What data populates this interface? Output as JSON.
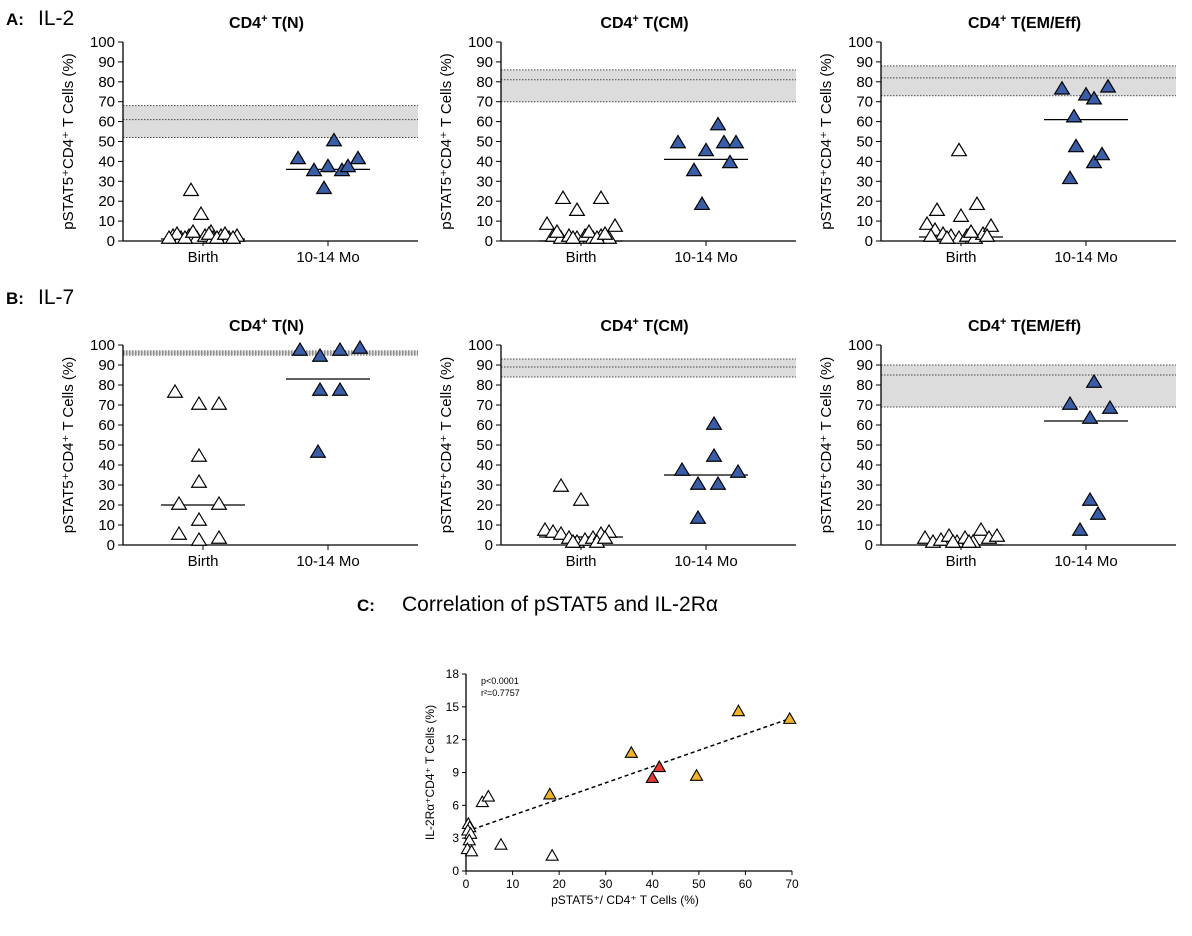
{
  "panels": {
    "A": {
      "letter": "A:",
      "label": "IL-2"
    },
    "B": {
      "letter": "B:",
      "label": "IL-7"
    },
    "C": {
      "letter": "C:",
      "label": "Correlation of pSTAT5 and IL-2Rα"
    }
  },
  "colors": {
    "filled": "#3a5da8",
    "open": "#ffffff",
    "band": "#dcdcdc",
    "orange": "#f0b429",
    "red": "#e63a2e",
    "stroke": "#000000"
  },
  "chart_data": [
    {
      "id": "A1",
      "type": "scatter",
      "title_prefix": "CD4",
      "title_sup": "+",
      "title_suffix": " T(N)",
      "ylabel": "pSTAT5⁺CD4⁺ T Cells (%)",
      "ylim": [
        0,
        100
      ],
      "yticks": [
        0,
        10,
        20,
        30,
        40,
        50,
        60,
        70,
        80,
        90,
        100
      ],
      "categories": [
        "Birth",
        "10-14 Mo"
      ],
      "reference_band": {
        "low": 52,
        "mid": 61,
        "high": 68
      },
      "groups": [
        {
          "name": "Birth",
          "fill": "open",
          "median": 1,
          "points": [
            {
              "x": -12,
              "y": 24
            },
            {
              "x": -2,
              "y": 12
            },
            {
              "x": 8,
              "y": 3
            },
            {
              "x": -30,
              "y": 1
            },
            {
              "x": -22,
              "y": 0
            },
            {
              "x": -14,
              "y": 1
            },
            {
              "x": -6,
              "y": 0
            },
            {
              "x": 2,
              "y": 1
            },
            {
              "x": 10,
              "y": 0
            },
            {
              "x": 18,
              "y": 1
            },
            {
              "x": 26,
              "y": 0
            },
            {
              "x": 34,
              "y": 1
            },
            {
              "x": -26,
              "y": 2
            },
            {
              "x": -18,
              "y": 0
            },
            {
              "x": -10,
              "y": 3
            },
            {
              "x": 6,
              "y": 2
            },
            {
              "x": 14,
              "y": 0
            },
            {
              "x": 22,
              "y": 2
            },
            {
              "x": 30,
              "y": 0
            },
            {
              "x": -34,
              "y": 0
            }
          ]
        },
        {
          "name": "10-14 Mo",
          "fill": "filled",
          "median": 36,
          "points": [
            {
              "x": -30,
              "y": 40
            },
            {
              "x": -14,
              "y": 34
            },
            {
              "x": 0,
              "y": 36
            },
            {
              "x": 14,
              "y": 34
            },
            {
              "x": 30,
              "y": 40
            },
            {
              "x": 6,
              "y": 49
            },
            {
              "x": -4,
              "y": 25
            },
            {
              "x": 20,
              "y": 36
            }
          ]
        }
      ]
    },
    {
      "id": "A2",
      "type": "scatter",
      "title_prefix": "CD4",
      "title_sup": "+",
      "title_suffix": " T(CM)",
      "ylabel": "pSTAT5⁺CD4⁺ T Cells (%)",
      "ylim": [
        0,
        100
      ],
      "yticks": [
        0,
        10,
        20,
        30,
        40,
        50,
        60,
        70,
        80,
        90,
        100
      ],
      "categories": [
        "Birth",
        "10-14 Mo"
      ],
      "reference_band": {
        "low": 70,
        "mid": 81,
        "high": 86
      },
      "groups": [
        {
          "name": "Birth",
          "fill": "open",
          "median": 0,
          "points": [
            {
              "x": -34,
              "y": 7
            },
            {
              "x": -18,
              "y": 20
            },
            {
              "x": -4,
              "y": 14
            },
            {
              "x": 20,
              "y": 20
            },
            {
              "x": 34,
              "y": 6
            },
            {
              "x": -28,
              "y": 1
            },
            {
              "x": -20,
              "y": 0
            },
            {
              "x": -12,
              "y": 1
            },
            {
              "x": -4,
              "y": 0
            },
            {
              "x": 4,
              "y": 1
            },
            {
              "x": 12,
              "y": 0
            },
            {
              "x": 20,
              "y": 1
            },
            {
              "x": 28,
              "y": 0
            },
            {
              "x": -24,
              "y": 3
            },
            {
              "x": 8,
              "y": 3
            },
            {
              "x": -8,
              "y": 0
            },
            {
              "x": 16,
              "y": 0
            },
            {
              "x": 24,
              "y": 2
            }
          ]
        },
        {
          "name": "10-14 Mo",
          "fill": "filled",
          "median": 41,
          "points": [
            {
              "x": -28,
              "y": 48
            },
            {
              "x": -12,
              "y": 34
            },
            {
              "x": 0,
              "y": 44
            },
            {
              "x": 12,
              "y": 57
            },
            {
              "x": 18,
              "y": 48
            },
            {
              "x": 30,
              "y": 48
            },
            {
              "x": -4,
              "y": 17
            },
            {
              "x": 24,
              "y": 38
            }
          ]
        }
      ]
    },
    {
      "id": "A3",
      "type": "scatter",
      "title_prefix": "CD4",
      "title_sup": "+",
      "title_suffix": " T(EM/Eff)",
      "ylabel": "pSTAT5⁺CD4⁺ T Cells (%)",
      "ylim": [
        0,
        100
      ],
      "yticks": [
        0,
        10,
        20,
        30,
        40,
        50,
        60,
        70,
        80,
        90,
        100
      ],
      "categories": [
        "Birth",
        "10-14 Mo"
      ],
      "reference_band": {
        "low": 73,
        "mid": 82,
        "high": 88
      },
      "groups": [
        {
          "name": "Birth",
          "fill": "open",
          "median": 2,
          "points": [
            {
              "x": -2,
              "y": 44
            },
            {
              "x": -24,
              "y": 14
            },
            {
              "x": 0,
              "y": 11
            },
            {
              "x": 16,
              "y": 17
            },
            {
              "x": -34,
              "y": 7
            },
            {
              "x": -26,
              "y": 4
            },
            {
              "x": -18,
              "y": 2
            },
            {
              "x": -10,
              "y": 1
            },
            {
              "x": -2,
              "y": 0
            },
            {
              "x": 6,
              "y": 1
            },
            {
              "x": 14,
              "y": 0
            },
            {
              "x": 22,
              "y": 2
            },
            {
              "x": 30,
              "y": 6
            },
            {
              "x": -30,
              "y": 1
            },
            {
              "x": -14,
              "y": 0
            },
            {
              "x": 10,
              "y": 3
            },
            {
              "x": 26,
              "y": 1
            }
          ]
        },
        {
          "name": "10-14 Mo",
          "fill": "filled",
          "median": 61,
          "points": [
            {
              "x": -24,
              "y": 75
            },
            {
              "x": -12,
              "y": 61
            },
            {
              "x": 0,
              "y": 72
            },
            {
              "x": 8,
              "y": 70
            },
            {
              "x": 22,
              "y": 76
            },
            {
              "x": -16,
              "y": 30
            },
            {
              "x": -10,
              "y": 46
            },
            {
              "x": 8,
              "y": 38
            },
            {
              "x": 16,
              "y": 42
            }
          ]
        }
      ]
    },
    {
      "id": "B1",
      "type": "scatter",
      "title_prefix": "CD4",
      "title_sup": "+",
      "title_suffix": " T(N)",
      "ylabel": "pSTAT5⁺CD4⁺ T Cells (%)",
      "ylim": [
        0,
        100
      ],
      "yticks": [
        0,
        10,
        20,
        30,
        40,
        50,
        60,
        70,
        80,
        90,
        100
      ],
      "categories": [
        "Birth",
        "10-14 Mo"
      ],
      "reference_band": {
        "low": 95,
        "mid": 96,
        "high": 97
      },
      "groups": [
        {
          "name": "Birth",
          "fill": "open",
          "median": 20,
          "points": [
            {
              "x": -28,
              "y": 75
            },
            {
              "x": -4,
              "y": 69
            },
            {
              "x": 16,
              "y": 69
            },
            {
              "x": -4,
              "y": 43
            },
            {
              "x": -4,
              "y": 30
            },
            {
              "x": -24,
              "y": 19
            },
            {
              "x": 16,
              "y": 19
            },
            {
              "x": -4,
              "y": 11
            },
            {
              "x": -24,
              "y": 4
            },
            {
              "x": -4,
              "y": 1
            },
            {
              "x": 16,
              "y": 2
            }
          ]
        },
        {
          "name": "10-14 Mo",
          "fill": "filled",
          "median": 83,
          "points": [
            {
              "x": -28,
              "y": 96
            },
            {
              "x": -8,
              "y": 93
            },
            {
              "x": 12,
              "y": 96
            },
            {
              "x": 32,
              "y": 97
            },
            {
              "x": -8,
              "y": 76
            },
            {
              "x": 12,
              "y": 76
            },
            {
              "x": -10,
              "y": 45
            }
          ]
        }
      ]
    },
    {
      "id": "B2",
      "type": "scatter",
      "title_prefix": "CD4",
      "title_sup": "+",
      "title_suffix": " T(CM)",
      "ylabel": "pSTAT5⁺CD4⁺ T Cells (%)",
      "ylim": [
        0,
        100
      ],
      "yticks": [
        0,
        10,
        20,
        30,
        40,
        50,
        60,
        70,
        80,
        90,
        100
      ],
      "categories": [
        "Birth",
        "10-14 Mo"
      ],
      "reference_band": {
        "low": 84,
        "mid": 89,
        "high": 93
      },
      "groups": [
        {
          "name": "Birth",
          "fill": "open",
          "median": 4,
          "points": [
            {
              "x": -20,
              "y": 28
            },
            {
              "x": 0,
              "y": 21
            },
            {
              "x": -36,
              "y": 6
            },
            {
              "x": -28,
              "y": 5
            },
            {
              "x": -20,
              "y": 4
            },
            {
              "x": -12,
              "y": 2
            },
            {
              "x": -4,
              "y": 0
            },
            {
              "x": 4,
              "y": 1
            },
            {
              "x": 12,
              "y": 2
            },
            {
              "x": 20,
              "y": 4
            },
            {
              "x": 28,
              "y": 5
            },
            {
              "x": -8,
              "y": 0
            },
            {
              "x": 16,
              "y": 0
            },
            {
              "x": 24,
              "y": 2
            }
          ]
        },
        {
          "name": "10-14 Mo",
          "fill": "filled",
          "median": 35,
          "points": [
            {
              "x": 8,
              "y": 59
            },
            {
              "x": 8,
              "y": 43
            },
            {
              "x": -24,
              "y": 36
            },
            {
              "x": 32,
              "y": 35
            },
            {
              "x": -8,
              "y": 29
            },
            {
              "x": 12,
              "y": 29
            },
            {
              "x": -8,
              "y": 12
            }
          ]
        }
      ]
    },
    {
      "id": "B3",
      "type": "scatter",
      "title_prefix": "CD4",
      "title_sup": "+",
      "title_suffix": " T(EM/Eff)",
      "ylabel": "pSTAT5⁺CD4⁺ T Cells (%)",
      "ylim": [
        0,
        100
      ],
      "yticks": [
        0,
        10,
        20,
        30,
        40,
        50,
        60,
        70,
        80,
        90,
        100
      ],
      "categories": [
        "Birth",
        "10-14 Mo"
      ],
      "reference_band": {
        "low": 69,
        "mid": 85,
        "high": 90
      },
      "groups": [
        {
          "name": "Birth",
          "fill": "open",
          "median": 0,
          "points": [
            {
              "x": -36,
              "y": 2
            },
            {
              "x": -28,
              "y": 0
            },
            {
              "x": -20,
              "y": 1
            },
            {
              "x": -12,
              "y": 3
            },
            {
              "x": -4,
              "y": 0
            },
            {
              "x": 4,
              "y": 2
            },
            {
              "x": 12,
              "y": 0
            },
            {
              "x": 20,
              "y": 6
            },
            {
              "x": 28,
              "y": 2
            },
            {
              "x": 36,
              "y": 3
            },
            {
              "x": -8,
              "y": 0
            },
            {
              "x": 8,
              "y": 0
            }
          ]
        },
        {
          "name": "10-14 Mo",
          "fill": "filled",
          "median": 62,
          "points": [
            {
              "x": 8,
              "y": 80
            },
            {
              "x": -16,
              "y": 69
            },
            {
              "x": 24,
              "y": 67
            },
            {
              "x": 4,
              "y": 62
            },
            {
              "x": 4,
              "y": 21
            },
            {
              "x": 12,
              "y": 14
            },
            {
              "x": -6,
              "y": 6
            }
          ]
        }
      ]
    },
    {
      "id": "C",
      "type": "scatter",
      "xlabel": "pSTAT5⁺/ CD4⁺ T Cells (%)",
      "ylabel": "IL-2Rα⁺CD4⁺ T Cells (%)",
      "xlim": [
        0,
        70
      ],
      "ylim": [
        0,
        18
      ],
      "xticks": [
        0,
        10,
        20,
        30,
        40,
        50,
        60,
        70
      ],
      "yticks": [
        0,
        3,
        6,
        9,
        12,
        15,
        18
      ],
      "annotation": {
        "p": "p<0.0001",
        "r2": "r²=0.7757"
      },
      "regression": {
        "x0": 0,
        "y0": 3.6,
        "x1": 70,
        "y1": 14.0
      },
      "points": [
        {
          "x": 0.5,
          "y": 4.3,
          "fill": "open"
        },
        {
          "x": 0.8,
          "y": 4.0,
          "fill": "open"
        },
        {
          "x": 0.4,
          "y": 3.7,
          "fill": "open"
        },
        {
          "x": 1.0,
          "y": 3.4,
          "fill": "open"
        },
        {
          "x": 0.7,
          "y": 2.8,
          "fill": "open"
        },
        {
          "x": 0.3,
          "y": 2.0,
          "fill": "open"
        },
        {
          "x": 1.2,
          "y": 1.8,
          "fill": "open"
        },
        {
          "x": 3.5,
          "y": 6.3,
          "fill": "open"
        },
        {
          "x": 4.8,
          "y": 6.8,
          "fill": "open"
        },
        {
          "x": 7.5,
          "y": 2.4,
          "fill": "open"
        },
        {
          "x": 18.5,
          "y": 1.4,
          "fill": "open"
        },
        {
          "x": 18.0,
          "y": 7.0,
          "fill": "orange"
        },
        {
          "x": 35.5,
          "y": 10.8,
          "fill": "orange"
        },
        {
          "x": 49.5,
          "y": 8.7,
          "fill": "orange"
        },
        {
          "x": 58.5,
          "y": 14.6,
          "fill": "orange"
        },
        {
          "x": 69.5,
          "y": 13.9,
          "fill": "orange"
        },
        {
          "x": 40.0,
          "y": 8.5,
          "fill": "red"
        },
        {
          "x": 41.5,
          "y": 9.5,
          "fill": "red"
        }
      ]
    }
  ]
}
